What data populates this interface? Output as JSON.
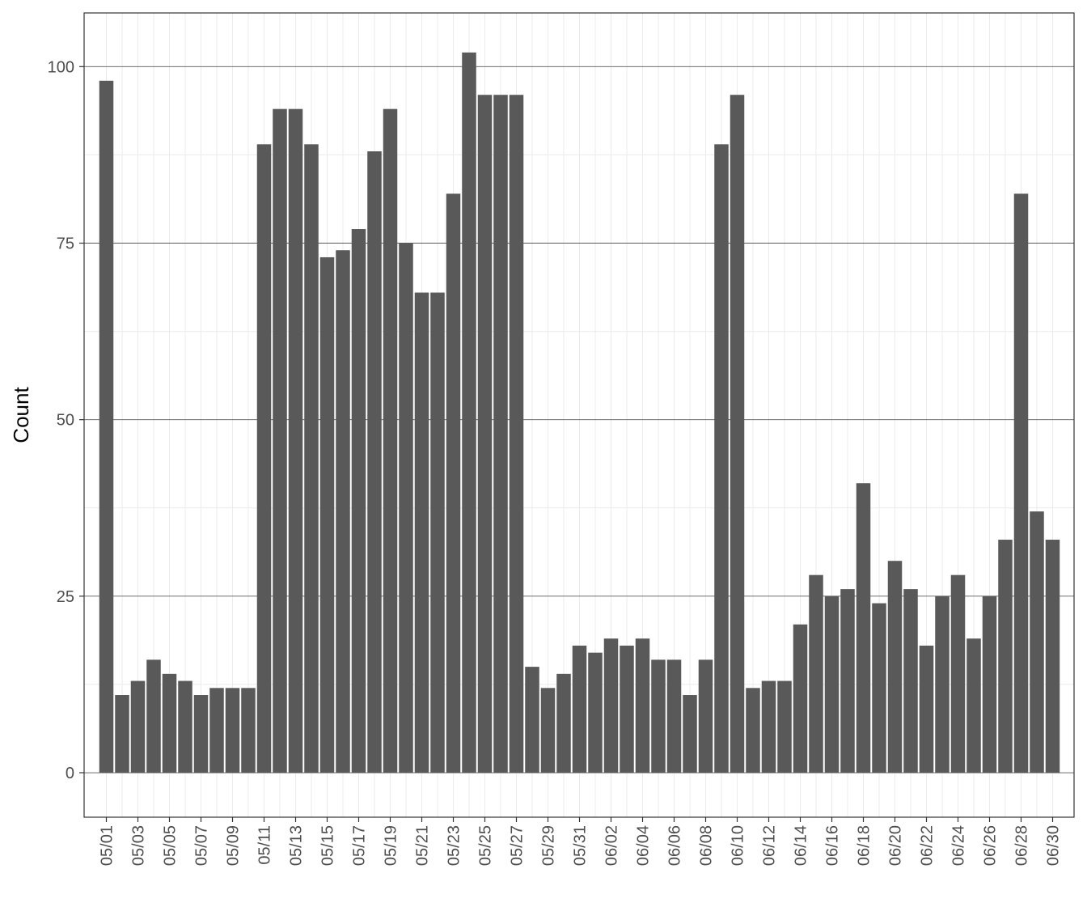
{
  "chart_data": {
    "type": "bar",
    "title": "",
    "xlabel": "",
    "ylabel": "Count",
    "ylim": [
      -6.3,
      107.6
    ],
    "yticks": [
      0,
      25,
      50,
      75,
      100
    ],
    "grid": true,
    "legend": "none",
    "bar_color": "#595959",
    "categories": [
      "05/01",
      "05/02",
      "05/03",
      "05/04",
      "05/05",
      "05/06",
      "05/07",
      "05/08",
      "05/09",
      "05/10",
      "05/11",
      "05/12",
      "05/13",
      "05/14",
      "05/15",
      "05/16",
      "05/17",
      "05/18",
      "05/19",
      "05/20",
      "05/21",
      "05/22",
      "05/23",
      "05/24",
      "05/25",
      "05/26",
      "05/27",
      "05/28",
      "05/29",
      "05/30",
      "05/31",
      "06/01",
      "06/02",
      "06/03",
      "06/04",
      "06/05",
      "06/06",
      "06/07",
      "06/08",
      "06/09",
      "06/10",
      "06/11",
      "06/12",
      "06/13",
      "06/14",
      "06/15",
      "06/16",
      "06/17",
      "06/18",
      "06/19",
      "06/20",
      "06/21",
      "06/22",
      "06/23",
      "06/24",
      "06/25",
      "06/26",
      "06/27",
      "06/28",
      "06/29",
      "06/30"
    ],
    "values": [
      98,
      11,
      13,
      16,
      14,
      13,
      11,
      12,
      12,
      12,
      89,
      94,
      94,
      89,
      73,
      74,
      77,
      88,
      94,
      75,
      68,
      68,
      82,
      102,
      96,
      96,
      96,
      15,
      12,
      14,
      18,
      17,
      19,
      18,
      19,
      16,
      16,
      11,
      16,
      89,
      96,
      12,
      13,
      13,
      21,
      28,
      25,
      26,
      41,
      24,
      30,
      26,
      18,
      25,
      28,
      19,
      25,
      33,
      82,
      37,
      33
    ],
    "xtick_labels": [
      "05/01",
      "05/03",
      "05/05",
      "05/07",
      "05/09",
      "05/11",
      "05/13",
      "05/15",
      "05/17",
      "05/19",
      "05/21",
      "05/23",
      "05/25",
      "05/27",
      "05/29",
      "05/31",
      "06/02",
      "06/04",
      "06/06",
      "06/08",
      "06/10",
      "06/12",
      "06/14",
      "06/16",
      "06/18",
      "06/20",
      "06/22",
      "06/24",
      "06/26",
      "06/28",
      "06/30"
    ]
  }
}
